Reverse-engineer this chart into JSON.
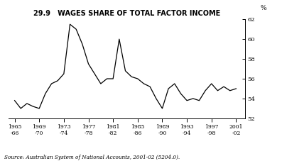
{
  "title": "29.9   WAGES SHARE OF TOTAL FACTOR INCOME",
  "pct_label": "%",
  "source": "Source: Australian System of National Accounts, 2001-02 (5204.0).",
  "ylim": [
    52,
    62
  ],
  "yticks": [
    52,
    54,
    56,
    58,
    60,
    62
  ],
  "line_color": "#000000",
  "line_width": 0.9,
  "background_color": "#ffffff",
  "x_tick_years": [
    1965,
    1969,
    1973,
    1977,
    1981,
    1985,
    1989,
    1993,
    1997,
    2001
  ],
  "x_tick_labels_top": [
    "1965",
    "1969",
    "1973",
    "1977",
    "1981",
    "1985",
    "1989",
    "1993",
    "1997",
    "2001"
  ],
  "x_tick_labels_bot": [
    "-66",
    "-70",
    "-74",
    "-78",
    "-82",
    "-86",
    "-90",
    "-94",
    "-98",
    "-02"
  ],
  "years": [
    1965,
    1966,
    1967,
    1968,
    1969,
    1970,
    1971,
    1972,
    1973,
    1974,
    1975,
    1976,
    1977,
    1978,
    1979,
    1980,
    1981,
    1982,
    1983,
    1984,
    1985,
    1986,
    1987,
    1988,
    1989,
    1990,
    1991,
    1992,
    1993,
    1994,
    1995,
    1996,
    1997,
    1998,
    1999,
    2000,
    2001
  ],
  "values": [
    53.8,
    53.0,
    53.5,
    53.2,
    53.0,
    54.5,
    55.5,
    55.8,
    56.5,
    61.5,
    61.0,
    59.5,
    57.5,
    56.5,
    55.5,
    56.0,
    56.0,
    60.0,
    56.8,
    56.2,
    56.0,
    55.5,
    55.2,
    54.0,
    53.0,
    55.0,
    55.5,
    54.5,
    53.8,
    54.0,
    53.8,
    54.8,
    55.5,
    54.8,
    55.2,
    54.8,
    55.0
  ]
}
